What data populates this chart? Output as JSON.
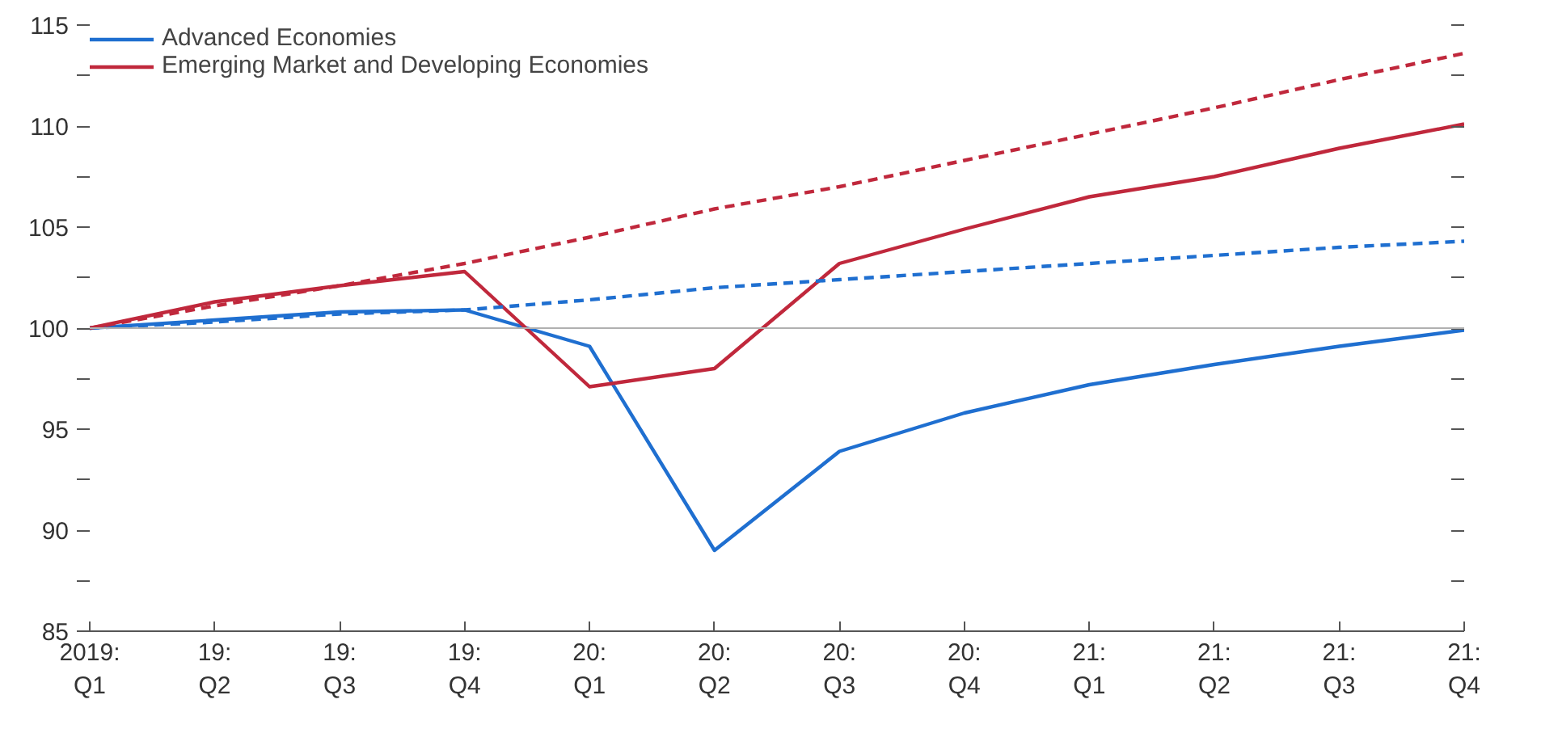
{
  "chart_data": {
    "type": "line",
    "categories": [
      "2019:\nQ1",
      "19:\nQ2",
      "19:\nQ3",
      "19:\nQ4",
      "20:\nQ1",
      "20:\nQ2",
      "20:\nQ3",
      "20:\nQ4",
      "21:\nQ1",
      "21:\nQ2",
      "21:\nQ3",
      "21:\nQ4"
    ],
    "series": [
      {
        "name": "Advanced Economies",
        "color": "#1f6fd0",
        "line_style": "solid",
        "values": [
          100,
          100.4,
          100.8,
          100.9,
          99.1,
          89.0,
          93.9,
          95.8,
          97.2,
          98.2,
          99.1,
          99.9
        ]
      },
      {
        "name": "Emerging Market and Developing Economies",
        "color": "#c0283c",
        "line_style": "solid",
        "values": [
          100,
          101.3,
          102.1,
          102.8,
          97.1,
          98.0,
          103.2,
          104.9,
          106.5,
          107.5,
          108.9,
          110.1
        ]
      },
      {
        "color": "#1f6fd0",
        "line_style": "dashed",
        "values": [
          100,
          100.3,
          100.7,
          100.9,
          101.4,
          102.0,
          102.4,
          102.8,
          103.2,
          103.6,
          104.0,
          104.3
        ]
      },
      {
        "color": "#c0283c",
        "line_style": "dashed",
        "values": [
          100,
          101.1,
          102.1,
          103.2,
          104.5,
          105.9,
          107.0,
          108.3,
          109.6,
          110.9,
          112.3,
          113.6
        ]
      }
    ],
    "ylim": [
      85,
      115
    ],
    "yticks": [
      85,
      {
        "value": 87.5,
        "label": null
      },
      90,
      {
        "value": 92.5,
        "label": null
      },
      95,
      {
        "value": 97.5,
        "label": null
      },
      100,
      {
        "value": 102.5,
        "label": null
      },
      105,
      {
        "value": 107.5,
        "label": null
      },
      110,
      {
        "value": 112.5,
        "label": null
      },
      115
    ],
    "ref_lines": [
      {
        "axis": "y",
        "value": 100,
        "color": "#b0b0b0"
      }
    ],
    "grid": false,
    "legend": "top left",
    "marker": "none"
  }
}
